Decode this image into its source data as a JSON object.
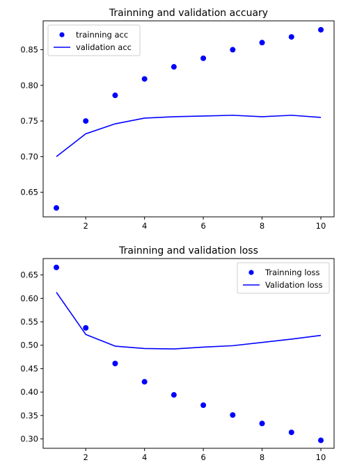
{
  "chart_data": [
    {
      "type": "line",
      "title": "Trainning and validation accuary",
      "xlabel": "",
      "ylabel": "",
      "x": [
        1,
        2,
        3,
        4,
        5,
        6,
        7,
        8,
        9,
        10
      ],
      "xlim": [
        0.55,
        10.45
      ],
      "ylim": [
        0.6155,
        0.8905
      ],
      "xticks": [
        2,
        4,
        6,
        8,
        10
      ],
      "xtick_labels": [
        "2",
        "4",
        "6",
        "8",
        "10"
      ],
      "yticks": [
        0.65,
        0.7,
        0.75,
        0.8,
        0.85
      ],
      "ytick_labels": [
        "0.65",
        "0.70",
        "0.75",
        "0.80",
        "0.85"
      ],
      "grid": false,
      "legend_position": "top-left",
      "series": [
        {
          "name": "trainning acc",
          "style": "markers",
          "color": "#0000ff",
          "values": [
            0.628,
            0.75,
            0.786,
            0.809,
            0.826,
            0.838,
            0.85,
            0.86,
            0.868,
            0.878
          ]
        },
        {
          "name": "validation acc",
          "style": "line",
          "color": "#0000ff",
          "values": [
            0.7,
            0.732,
            0.746,
            0.754,
            0.756,
            0.757,
            0.758,
            0.756,
            0.758,
            0.755
          ]
        }
      ]
    },
    {
      "type": "line",
      "title": "Trainning and validation loss",
      "xlabel": "",
      "ylabel": "",
      "x": [
        1,
        2,
        3,
        4,
        5,
        6,
        7,
        8,
        9,
        10
      ],
      "xlim": [
        0.55,
        10.45
      ],
      "ylim": [
        0.28,
        0.685
      ],
      "xticks": [
        2,
        4,
        6,
        8,
        10
      ],
      "xtick_labels": [
        "2",
        "4",
        "6",
        "8",
        "10"
      ],
      "yticks": [
        0.3,
        0.35,
        0.4,
        0.45,
        0.5,
        0.55,
        0.6,
        0.65
      ],
      "ytick_labels": [
        "0.30",
        "0.35",
        "0.40",
        "0.45",
        "0.50",
        "0.55",
        "0.60",
        "0.65"
      ],
      "grid": false,
      "legend_position": "top-right",
      "series": [
        {
          "name": "Trainning loss",
          "style": "markers",
          "color": "#0000ff",
          "values": [
            0.666,
            0.537,
            0.461,
            0.422,
            0.394,
            0.372,
            0.351,
            0.333,
            0.314,
            0.297
          ]
        },
        {
          "name": "Validation loss",
          "style": "line",
          "color": "#0000ff",
          "values": [
            0.613,
            0.523,
            0.498,
            0.493,
            0.492,
            0.496,
            0.499,
            0.506,
            0.513,
            0.521
          ]
        }
      ]
    }
  ]
}
